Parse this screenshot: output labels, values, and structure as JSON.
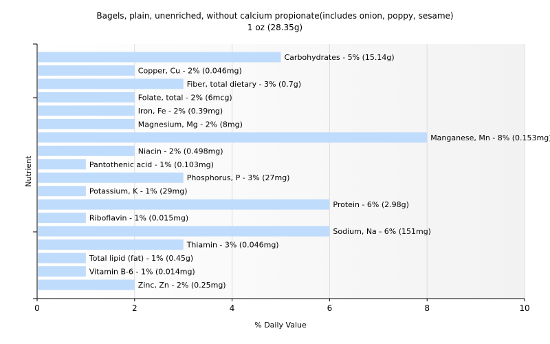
{
  "chart_data": {
    "type": "bar",
    "orientation": "horizontal",
    "title": "Bagels, plain, unenriched, without calcium propionate(includes onion, poppy, sesame)",
    "subtitle": "1 oz (28.35g)",
    "xlabel": "% Daily Value",
    "ylabel": "Nutrient",
    "xlim": [
      0,
      10
    ],
    "xticks": [
      "0",
      "2",
      "4",
      "6",
      "8",
      "10"
    ],
    "grid": true,
    "bar_color": "#c0dcfc",
    "categories": [
      "Carbohydrates",
      "Copper, Cu",
      "Fiber, total dietary",
      "Folate, total",
      "Iron, Fe",
      "Magnesium, Mg",
      "Manganese, Mn",
      "Niacin",
      "Pantothenic acid",
      "Phosphorus, P",
      "Potassium, K",
      "Protein",
      "Riboflavin",
      "Sodium, Na",
      "Thiamin",
      "Total lipid (fat)",
      "Vitamin B-6",
      "Zinc, Zn"
    ],
    "values": [
      5,
      2,
      3,
      2,
      2,
      2,
      8,
      2,
      1,
      3,
      1,
      6,
      1,
      6,
      3,
      1,
      1,
      2
    ],
    "labels": [
      "Carbohydrates - 5% (15.14g)",
      "Copper, Cu - 2% (0.046mg)",
      "Fiber, total dietary - 3% (0.7g)",
      "Folate, total - 2% (6mcg)",
      "Iron, Fe - 2% (0.39mg)",
      "Magnesium, Mg - 2% (8mg)",
      "Manganese, Mn - 8% (0.153mg)",
      "Niacin - 2% (0.498mg)",
      "Pantothenic acid - 1% (0.103mg)",
      "Phosphorus, P - 3% (27mg)",
      "Potassium, K - 1% (29mg)",
      "Protein - 6% (2.98g)",
      "Riboflavin - 1% (0.015mg)",
      "Sodium, Na - 6% (151mg)",
      "Thiamin - 3% (0.046mg)",
      "Total lipid (fat) - 1% (0.45g)",
      "Vitamin B-6 - 1% (0.014mg)",
      "Zinc, Zn - 2% (0.25mg)"
    ]
  }
}
